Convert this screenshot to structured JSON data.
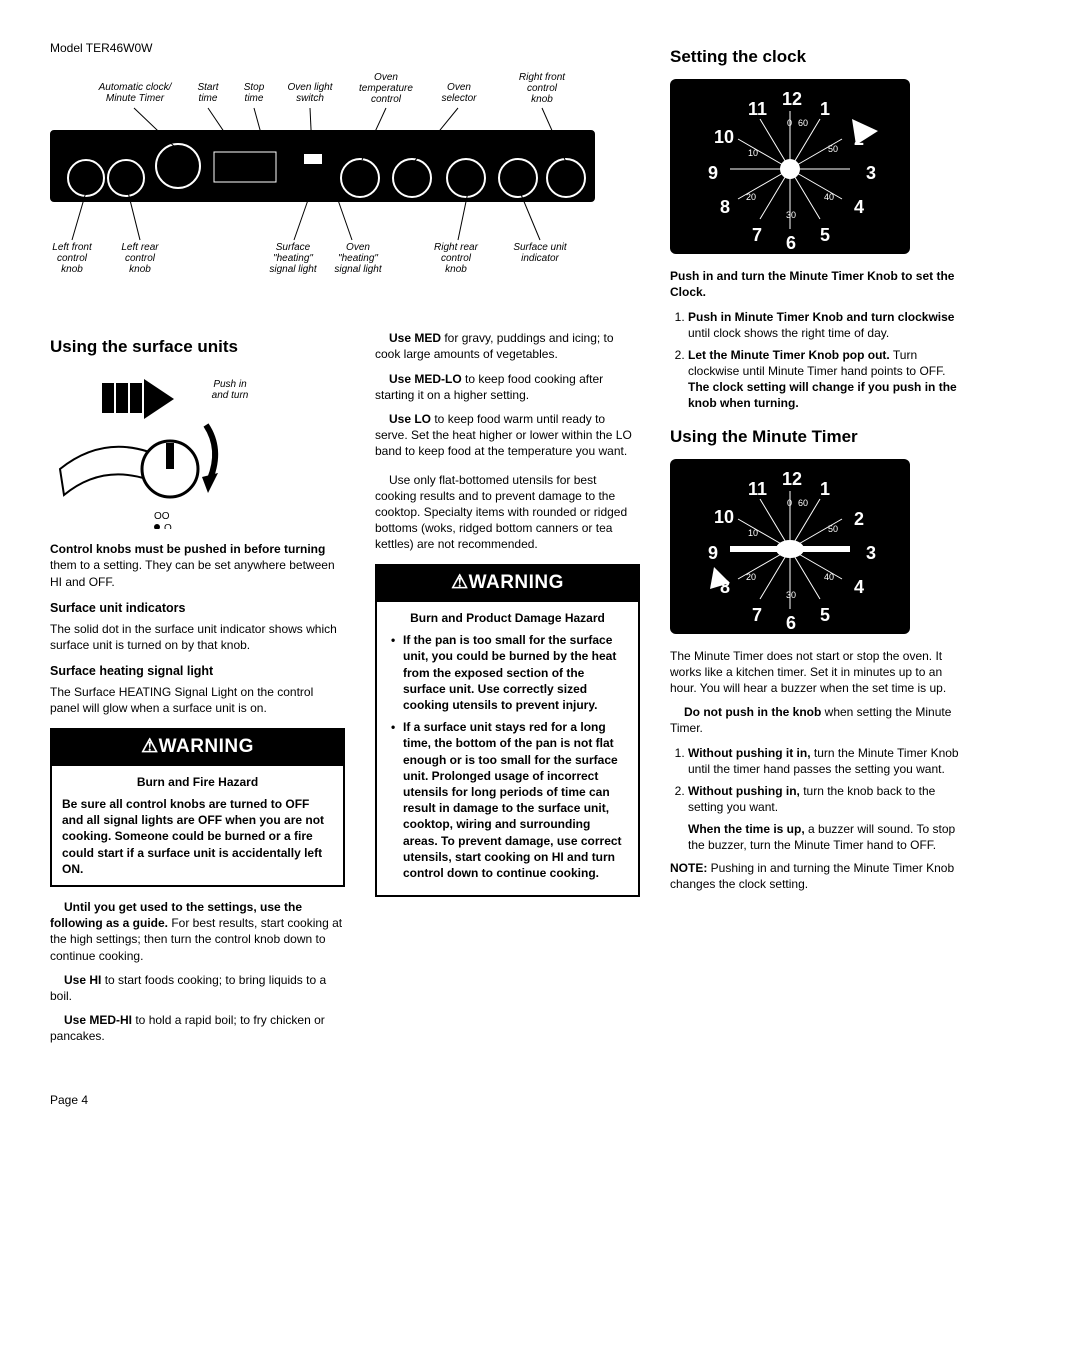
{
  "model": "Model TER46W0W",
  "pageNumber": "Page 4",
  "panelLabels": {
    "top": [
      "Automatic clock/\nMinute Timer",
      "Start\ntime",
      "Stop\ntime",
      "Oven light\nswitch",
      "Oven\ntemperature\ncontrol",
      "Oven\nselector",
      "Right front\ncontrol\nknob"
    ],
    "bottom": [
      "Left front\ncontrol\nknob",
      "Left rear\ncontrol\nknob",
      "Surface\n\"heating\"\nsignal light",
      "Oven\n\"heating\"\nsignal light",
      "Right rear\ncontrol\nknob",
      "Surface unit\nindicator"
    ]
  },
  "col1": {
    "h_surface": "Using the surface units",
    "pushTurn": "Push in\nand turn",
    "p_knobs": {
      "b": "Control knobs must be pushed in before turning",
      "rest": " them to a setting. They can be set anywhere between HI and OFF."
    },
    "h_indicators": "Surface unit indicators",
    "p_indicators": "The solid dot in the surface unit indicator shows which surface unit is turned on by that knob.",
    "h_signal": "Surface heating signal light",
    "p_signal": "The Surface HEATING Signal Light on the control panel will glow when a surface unit is on.",
    "warn1": {
      "header": "⚠WARNING",
      "hazard": "Burn and Fire Hazard",
      "body": "Be sure all control knobs are turned to OFF and all signal lights are OFF when you are not cooking. Someone could be burned or a fire could start if a surface unit is accidentally left ON."
    },
    "p_guide": {
      "b": "Until you get used to the settings, use the following as a guide.",
      "rest": " For best results, start cooking at the high settings; then turn the control knob down to continue cooking."
    },
    "p_hi": {
      "b": "Use HI",
      "rest": " to start foods cooking; to bring liquids to a boil."
    },
    "p_medhi": {
      "b": "Use MED-HI",
      "rest": " to hold a rapid boil; to fry chicken or pancakes."
    }
  },
  "col2": {
    "p_med": {
      "b": "Use MED",
      "rest": " for gravy, puddings and icing; to cook large amounts of vegetables."
    },
    "p_medlo": {
      "b": "Use MED-LO",
      "rest": " to keep food cooking after starting it on a higher setting."
    },
    "p_lo": {
      "b": "Use LO",
      "rest": " to keep food warm until ready to serve. Set the heat higher or lower within the LO band to keep food at the temperature you want."
    },
    "p_flat": "Use only flat-bottomed utensils for best cooking results and to prevent damage to the cooktop. Specialty items with rounded or ridged bottoms (woks, ridged bottom canners or tea kettles) are not recommended.",
    "warn2": {
      "header": "⚠WARNING",
      "hazard": "Burn and Product Damage Hazard",
      "li1": "If the pan is too small for the surface unit, you could be burned by the heat from the exposed section of the surface unit. Use correctly sized cooking utensils to prevent injury.",
      "li2": "If a surface unit stays red for a long time, the bottom of the pan is not flat enough or is too small for the surface unit. Prolonged usage of incorrect utensils for long periods of time can result in damage to the surface unit, cooktop, wiring and surrounding areas. To prevent damage, use correct utensils, start cooking on HI and turn control down to continue cooking."
    }
  },
  "col3": {
    "h_clock": "Setting the clock",
    "clockNums": [
      "12",
      "1",
      "2",
      "3",
      "4",
      "5",
      "6",
      "7",
      "8",
      "9",
      "10",
      "11"
    ],
    "clockSmallTicks": [
      "0",
      "60",
      "10",
      "20",
      "30",
      "40",
      "50"
    ],
    "p_set": "Push in and turn the Minute Timer Knob to set the Clock.",
    "step1": {
      "b": "Push in Minute Timer Knob and turn clockwise",
      "rest": " until clock shows the right time of day."
    },
    "step2": {
      "b1": "Let the Minute Timer Knob pop out.",
      "mid": " Turn clockwise until Minute Timer hand points to OFF. ",
      "b2": "The clock setting will change if you push in the knob when turning."
    },
    "h_timer": "Using the Minute Timer",
    "p_timer1": "The Minute Timer does not start or stop the oven. It works like a kitchen timer. Set it in minutes up to an hour. You will hear a buzzer when the set time is up.",
    "p_timer2": {
      "b": "Do not push in the knob",
      "rest": " when setting the Minute Timer."
    },
    "tstep1": {
      "b": "Without pushing it in,",
      "rest": " turn the Minute Timer Knob until the timer hand passes the setting you want."
    },
    "tstep2": {
      "b": "Without pushing in,",
      "rest": " turn the knob back to the setting you want."
    },
    "tstep2b": {
      "b": "When the time is up,",
      "rest": " a buzzer will sound. To stop the buzzer, turn the Minute Timer hand to OFF."
    },
    "note": {
      "b": "NOTE:",
      "rest": " Pushing in and turning the Minute Timer Knob changes the clock setting."
    }
  }
}
